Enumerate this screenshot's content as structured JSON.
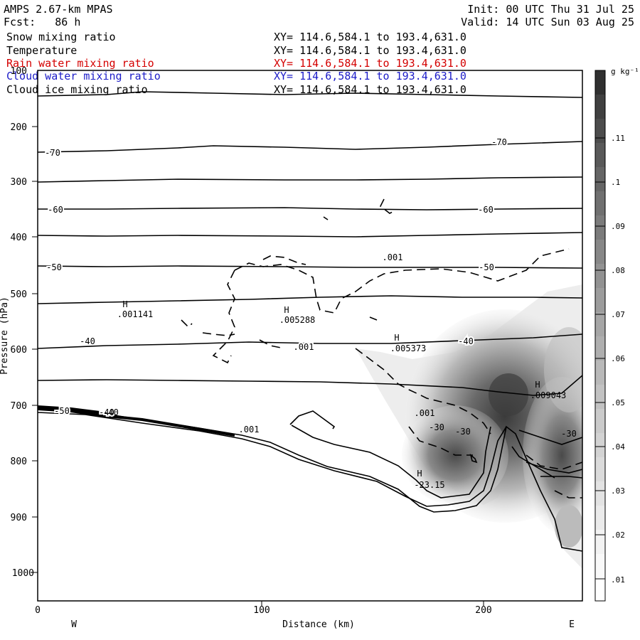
{
  "header": {
    "model": "AMPS 2.67-km MPAS",
    "forecast": "Fcst:   86 h",
    "init": "Init: 00 UTC Thu 31 Jul 25",
    "valid": "Valid: 14 UTC Sun 03 Aug 25"
  },
  "fields": [
    {
      "name": "Snow mixing ratio",
      "xy": "XY= 114.6,584.1 to 193.4,631.0",
      "color": "#000000"
    },
    {
      "name": "Temperature",
      "xy": "XY= 114.6,584.1 to 193.4,631.0",
      "color": "#000000"
    },
    {
      "name": "Rain water mixing ratio",
      "xy": "XY= 114.6,584.1 to 193.4,631.0",
      "color": "#d40000"
    },
    {
      "name": "Cloud water mixing ratio",
      "xy": "XY= 114.6,584.1 to 193.4,631.0",
      "color": "#1c1cc8"
    },
    {
      "name": "Cloud ice mixing ratio",
      "xy": "XY= 114.6,584.1 to 193.4,631.0",
      "color": "#000000"
    }
  ],
  "chart_data": {
    "type": "cross-section",
    "xlabel": "Distance (km)",
    "ylabel": "Pressure (hPa)",
    "x_ticks": [
      0,
      100,
      200
    ],
    "y_ticks": [
      200,
      300,
      400,
      500,
      600,
      700,
      800,
      900,
      1000
    ],
    "x_range": [
      0,
      245
    ],
    "y_range": [
      100,
      1050
    ],
    "direction_labels": {
      "west": "W",
      "east": "E"
    },
    "colorbar": {
      "unit": "g kg⁻¹",
      "ticks": [
        ".01",
        ".02",
        ".03",
        ".04",
        ".05",
        ".06",
        ".07",
        ".08",
        ".09",
        ".1",
        ".11"
      ]
    },
    "temperature_contours": [
      {
        "label": "-70",
        "pressure_west": 245,
        "pressure_east": 230
      },
      {
        "label": "-60",
        "pressure_west": 350,
        "pressure_east": 348
      },
      {
        "label": "-50",
        "pressure_west": 455,
        "pressure_east": 455
      },
      {
        "label": "-40",
        "pressure_west": 598,
        "pressure_east": 558
      }
    ],
    "maxima": [
      {
        "symbol": "H",
        "value": ".001141",
        "distance": 38,
        "pressure": 525
      },
      {
        "symbol": "H",
        "value": ".005288",
        "distance": 112,
        "pressure": 555
      },
      {
        "symbol": "H",
        "value": ".005373",
        "distance": 162,
        "pressure": 590
      },
      {
        "symbol": "H",
        "value": ".009043",
        "distance": 226,
        "pressure": 690
      },
      {
        "symbol": "H",
        "value": "-23.15",
        "distance": 176,
        "pressure": 865
      }
    ],
    "other_labels": [
      {
        "text": ".001",
        "distance": 159,
        "pressure": 455
      },
      {
        "text": ".001",
        "distance": 120,
        "pressure": 605
      },
      {
        "text": ".001",
        "distance": 175,
        "pressure": 735
      },
      {
        "text": ".001",
        "distance": 95,
        "pressure": 765
      },
      {
        "text": "-30",
        "distance": 183,
        "pressure": 758
      },
      {
        "text": "-30",
        "distance": 192,
        "pressure": 762
      },
      {
        "text": "-30",
        "distance": 240,
        "pressure": 765
      },
      {
        "text": "-40",
        "distance": 190,
        "pressure": 608
      },
      {
        "text": "-50",
        "distance": 11,
        "pressure": 712
      },
      {
        "text": "-40",
        "distance": 32,
        "pressure": 713
      }
    ]
  }
}
